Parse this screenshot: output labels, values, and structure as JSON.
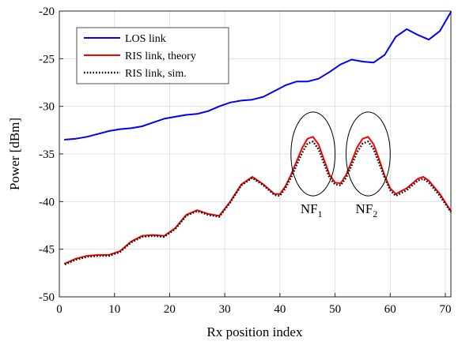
{
  "chart_data": {
    "type": "line",
    "xlabel": "Rx position index",
    "ylabel": "Power [dBm]",
    "xlim": [
      0,
      71
    ],
    "ylim": [
      -50,
      -20
    ],
    "xticks": [
      0,
      10,
      20,
      30,
      40,
      50,
      60,
      70
    ],
    "yticks": [
      -50,
      -45,
      -40,
      -35,
      -30,
      -25,
      -20
    ],
    "grid": true,
    "legend_position": "top-left",
    "series": [
      {
        "name": "LOS link",
        "color": "#0000ff",
        "style": "solid",
        "x": [
          1,
          3,
          5,
          7,
          9,
          11,
          13,
          15,
          17,
          19,
          21,
          23,
          25,
          27,
          29,
          31,
          33,
          35,
          37,
          39,
          41,
          43,
          45,
          47,
          49,
          51,
          53,
          55,
          57,
          59,
          61,
          63,
          65,
          67,
          69,
          71
        ],
        "y": [
          -33.5,
          -33.4,
          -33.2,
          -32.9,
          -32.6,
          -32.4,
          -32.3,
          -32.1,
          -31.7,
          -31.3,
          -31.1,
          -30.9,
          -30.8,
          -30.5,
          -30.0,
          -29.6,
          -29.4,
          -29.3,
          -29.0,
          -28.4,
          -27.8,
          -27.4,
          -27.4,
          -27.1,
          -26.4,
          -25.6,
          -25.1,
          -25.3,
          -25.4,
          -24.6,
          -22.7,
          -21.9,
          -22.5,
          -23.0,
          -22.1,
          -20.1
        ]
      },
      {
        "name": "RIS link, theory",
        "color": "#ff0000",
        "style": "solid",
        "x": [
          1,
          3,
          5,
          7,
          9,
          11,
          13,
          15,
          17,
          19,
          21,
          23,
          25,
          27,
          29,
          31,
          33,
          35,
          37,
          39,
          40,
          41,
          42,
          43,
          44,
          45,
          46,
          47,
          48,
          49,
          50,
          51,
          52,
          53,
          54,
          55,
          56,
          57,
          58,
          59,
          60,
          61,
          63,
          65,
          66,
          67,
          69,
          71
        ],
        "y": [
          -46.5,
          -46.0,
          -45.7,
          -45.6,
          -45.6,
          -45.2,
          -44.2,
          -43.6,
          -43.5,
          -43.6,
          -42.8,
          -41.4,
          -40.9,
          -41.3,
          -41.5,
          -40.0,
          -38.2,
          -37.4,
          -38.2,
          -39.2,
          -39.2,
          -38.4,
          -37.2,
          -35.8,
          -34.4,
          -33.4,
          -33.2,
          -34.0,
          -35.6,
          -37.2,
          -38.0,
          -38.1,
          -37.2,
          -35.8,
          -34.3,
          -33.4,
          -33.2,
          -34.0,
          -35.6,
          -37.3,
          -38.6,
          -39.2,
          -38.6,
          -37.6,
          -37.4,
          -37.8,
          -39.2,
          -41.0
        ]
      },
      {
        "name": "RIS link, sim.",
        "color": "#000000",
        "style": "dotted",
        "x": [
          1,
          3,
          5,
          7,
          9,
          11,
          13,
          15,
          17,
          19,
          21,
          23,
          25,
          27,
          29,
          31,
          33,
          35,
          37,
          39,
          40,
          41,
          42,
          43,
          44,
          45,
          46,
          47,
          48,
          49,
          50,
          51,
          52,
          53,
          54,
          55,
          56,
          57,
          58,
          59,
          60,
          61,
          63,
          65,
          66,
          67,
          69,
          71
        ],
        "y": [
          -46.6,
          -46.1,
          -45.8,
          -45.7,
          -45.7,
          -45.3,
          -44.3,
          -43.7,
          -43.6,
          -43.7,
          -42.9,
          -41.5,
          -41.0,
          -41.4,
          -41.6,
          -40.1,
          -38.3,
          -37.5,
          -38.3,
          -39.3,
          -39.4,
          -38.6,
          -37.5,
          -36.2,
          -34.9,
          -33.9,
          -33.7,
          -34.5,
          -36.0,
          -37.5,
          -38.2,
          -38.3,
          -37.5,
          -36.2,
          -34.8,
          -33.9,
          -33.7,
          -34.5,
          -36.0,
          -37.5,
          -38.8,
          -39.4,
          -38.8,
          -37.8,
          -37.6,
          -38.0,
          -39.4,
          -41.1
        ]
      }
    ],
    "annotations": [
      {
        "label": "NF",
        "subscript": "1",
        "ellipse_center": [
          46,
          -35
        ],
        "ellipse_radii": [
          4,
          4.4
        ]
      },
      {
        "label": "NF",
        "subscript": "2",
        "ellipse_center": [
          56,
          -35
        ],
        "ellipse_radii": [
          4,
          4.4
        ]
      }
    ]
  }
}
